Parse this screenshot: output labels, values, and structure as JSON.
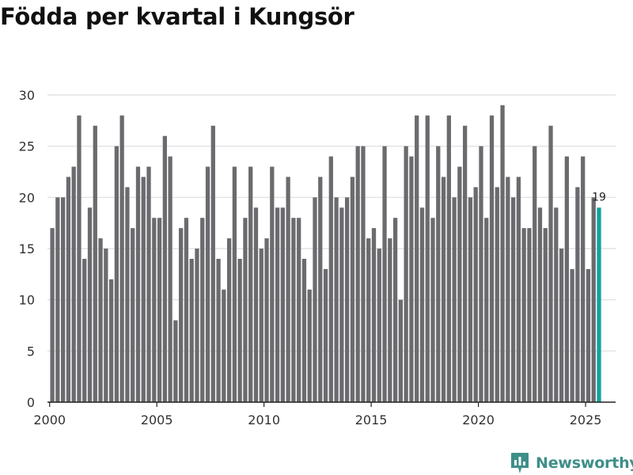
{
  "colors": {
    "bar": "#6b6b6f",
    "highlight": "#10a39a",
    "grid": "#dddddd",
    "axis": "#222222",
    "text": "#333333",
    "brand": "#3e8f88"
  },
  "branding": {
    "name": "Newsworthy",
    "icon": "bar-chart-logo-icon"
  },
  "chart_data": {
    "type": "bar",
    "title": "Födda per kvartal i Kungsör",
    "xlabel": "",
    "ylabel": "",
    "ylim": [
      0,
      30
    ],
    "yticks": [
      0,
      5,
      10,
      15,
      20,
      25,
      30
    ],
    "xticks": [
      2000,
      2005,
      2010,
      2015,
      2020,
      2025
    ],
    "xlim": [
      1999.9,
      2026.4
    ],
    "grid": true,
    "start_year": 2000,
    "periods_per_year": 4,
    "values": [
      17,
      20,
      20,
      22,
      23,
      28,
      14,
      19,
      27,
      16,
      15,
      12,
      25,
      28,
      21,
      17,
      23,
      22,
      23,
      18,
      18,
      26,
      24,
      8,
      17,
      18,
      14,
      15,
      18,
      23,
      27,
      14,
      11,
      16,
      23,
      14,
      18,
      23,
      19,
      15,
      16,
      23,
      19,
      19,
      22,
      18,
      18,
      14,
      11,
      20,
      22,
      13,
      24,
      20,
      19,
      20,
      22,
      25,
      25,
      16,
      17,
      15,
      25,
      16,
      18,
      10,
      25,
      24,
      28,
      19,
      28,
      18,
      25,
      22,
      28,
      20,
      23,
      27,
      20,
      21,
      25,
      18,
      28,
      21,
      29,
      22,
      20,
      22,
      17,
      17,
      25,
      19,
      17,
      27,
      19,
      15,
      24,
      13,
      21,
      24,
      13,
      20,
      19
    ],
    "highlight_last": true,
    "annotations": [
      {
        "label": "19",
        "target": "last"
      }
    ]
  }
}
